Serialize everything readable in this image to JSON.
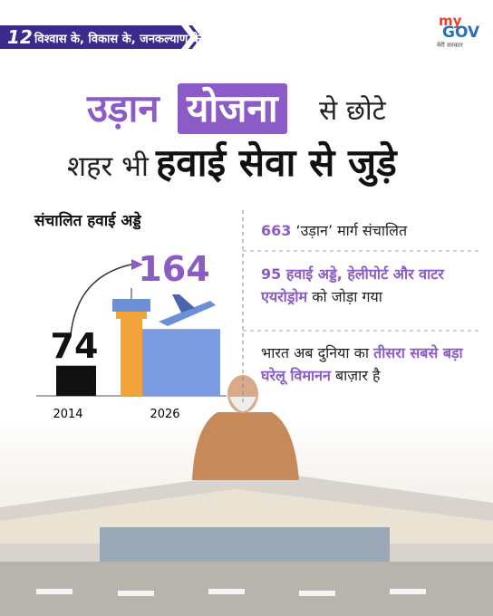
{
  "header": {
    "badge_number": "12",
    "badge_text": "विश्वास के, विकास के, जनकल्याण के",
    "logo_top": "my",
    "logo_main": "GOV",
    "logo_sub": "मेरी सरकार"
  },
  "title": {
    "line1": [
      "उड़ान",
      "योजना",
      "से छोटे"
    ],
    "line2": [
      "शहर भी",
      "हवाई सेवा से जुड़े"
    ]
  },
  "airports": {
    "title": "संचालित हवाई अड्डे",
    "items": [
      {
        "year": "2014",
        "value": 74
      },
      {
        "year": "2026",
        "value": 164
      }
    ]
  },
  "facts": [
    [
      {
        "text": "663",
        "highlight": true
      },
      {
        "text": "‘उड़ान’ मार्ग संचालित",
        "highlight": false
      }
    ],
    [
      {
        "text": "95 हवाई अड्डे, हेलीपोर्ट और वाटर एयरोड्रोम",
        "highlight": true
      },
      {
        "text": "को जोड़ा गया",
        "highlight": false
      }
    ],
    [
      {
        "text": "भारत अब दुनिया का",
        "highlight": false
      },
      {
        "text": "तीसरा सबसे बड़ा घरेलू विमानन",
        "highlight": true
      },
      {
        "text": "बाज़ार है",
        "highlight": false
      }
    ]
  ]
}
